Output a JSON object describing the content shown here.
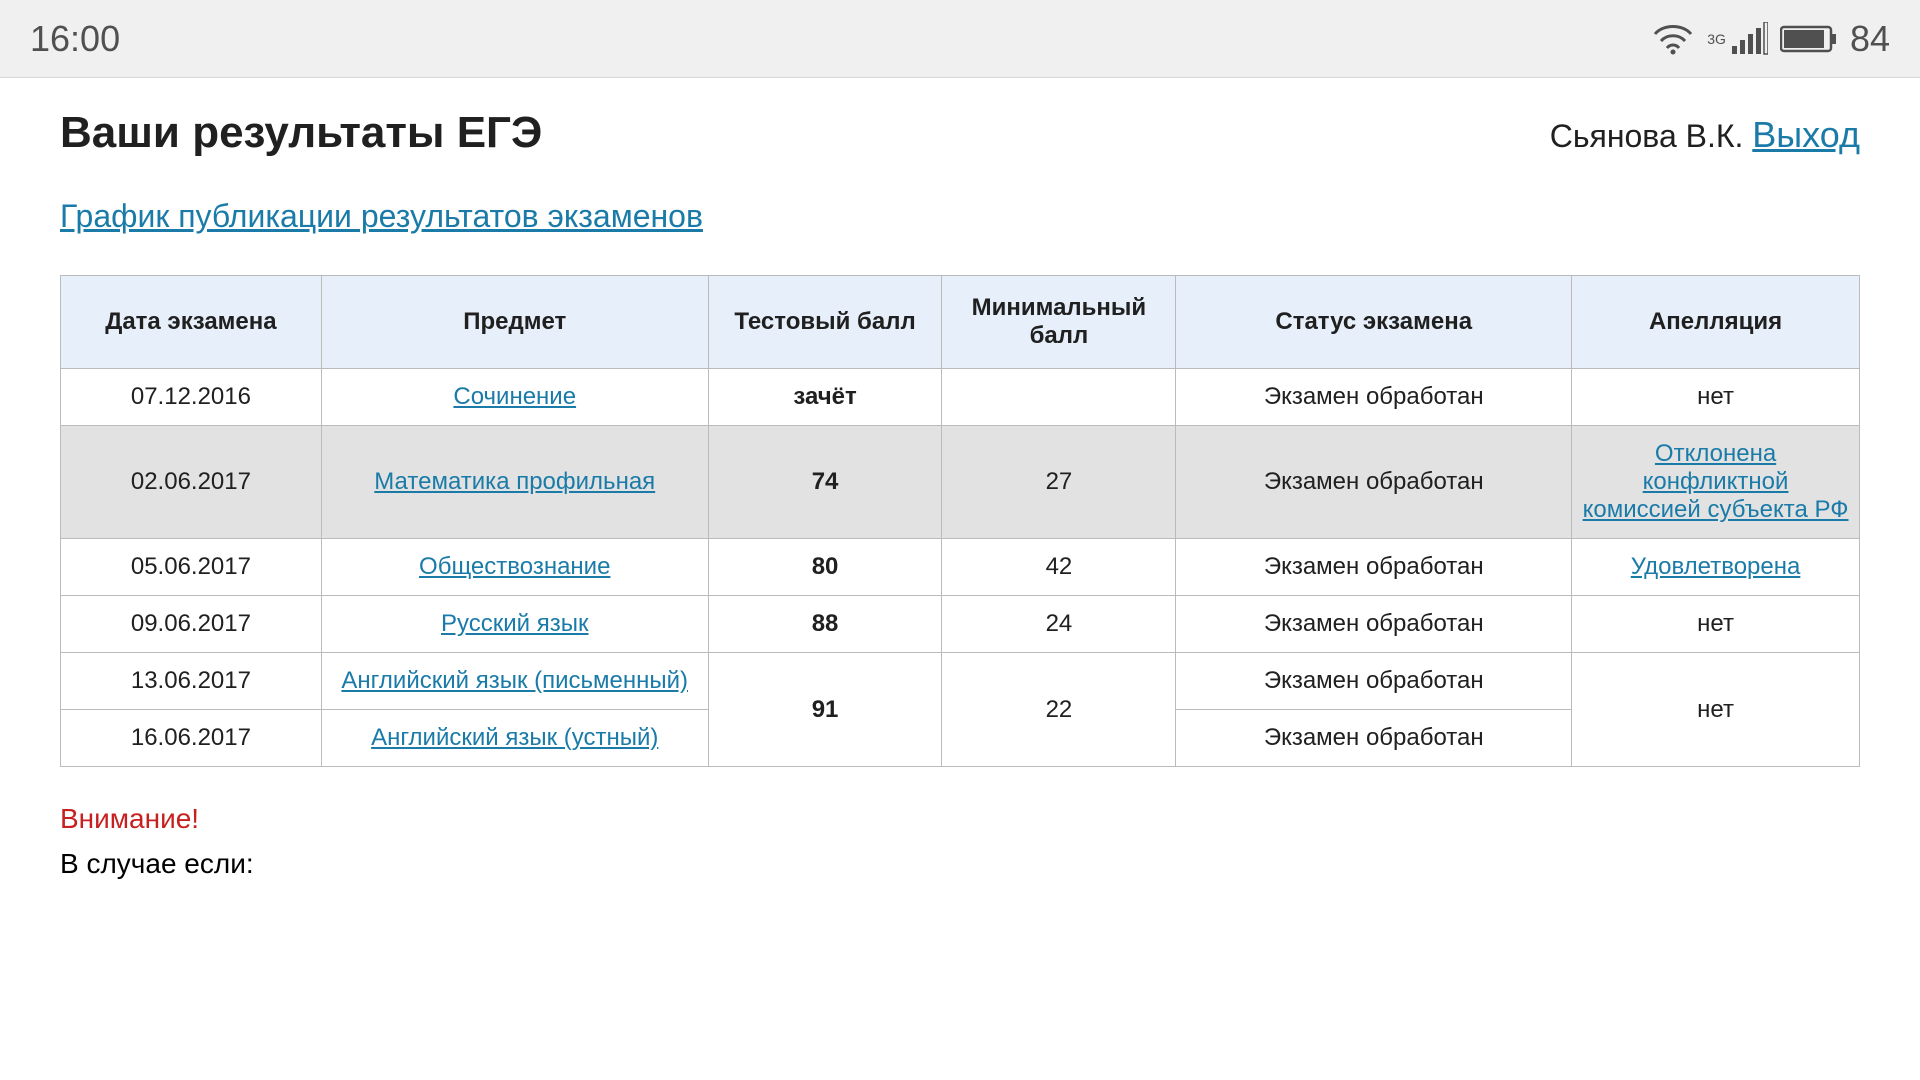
{
  "statusBar": {
    "time": "16:00",
    "netLabel": "3G",
    "battery": "84"
  },
  "header": {
    "title": "Ваши результаты ЕГЭ",
    "userName": "Сьянова В.К.",
    "logout": "Выход"
  },
  "scheduleLink": "График публикации результатов экзаменов",
  "table": {
    "columns": [
      "Дата экзамена",
      "Предмет",
      "Тестовый балл",
      "Минимальный балл",
      "Статус экзамена",
      "Апелляция"
    ],
    "rows": [
      {
        "date": "07.12.2016",
        "subject": "Сочинение",
        "score": "зачёт",
        "min": "",
        "status": "Экзамен обработан",
        "appeal": "нет",
        "appealLink": false,
        "alt": false
      },
      {
        "date": "02.06.2017",
        "subject": "Математика профильная",
        "score": "74",
        "min": "27",
        "status": "Экзамен обработан",
        "appeal": "Отклонена конфликтной комиссией субъекта РФ",
        "appealLink": true,
        "alt": true
      },
      {
        "date": "05.06.2017",
        "subject": "Обществознание",
        "score": "80",
        "min": "42",
        "status": "Экзамен обработан",
        "appeal": "Удовлетворена",
        "appealLink": true,
        "alt": false
      },
      {
        "date": "09.06.2017",
        "subject": "Русский язык",
        "score": "88",
        "min": "24",
        "status": "Экзамен обработан",
        "appeal": "нет",
        "appealLink": false,
        "alt": false
      }
    ],
    "mergedGroup": {
      "rows": [
        {
          "date": "13.06.2017",
          "subject": "Английский язык (письменный)",
          "status": "Экзамен обработан"
        },
        {
          "date": "16.06.2017",
          "subject": "Английский язык (устный)",
          "status": "Экзамен обработан"
        }
      ],
      "score": "91",
      "min": "22",
      "appeal": "нет",
      "appealLink": false
    }
  },
  "footer": {
    "attention": "Внимание!",
    "line2": "В случае если:"
  },
  "style": {
    "headerBg": "#e7effa",
    "altRowBg": "#e2e2e2",
    "linkColor": "#1a7ba8",
    "passColor": "#1a8a1a",
    "attentionColor": "#c62020"
  }
}
